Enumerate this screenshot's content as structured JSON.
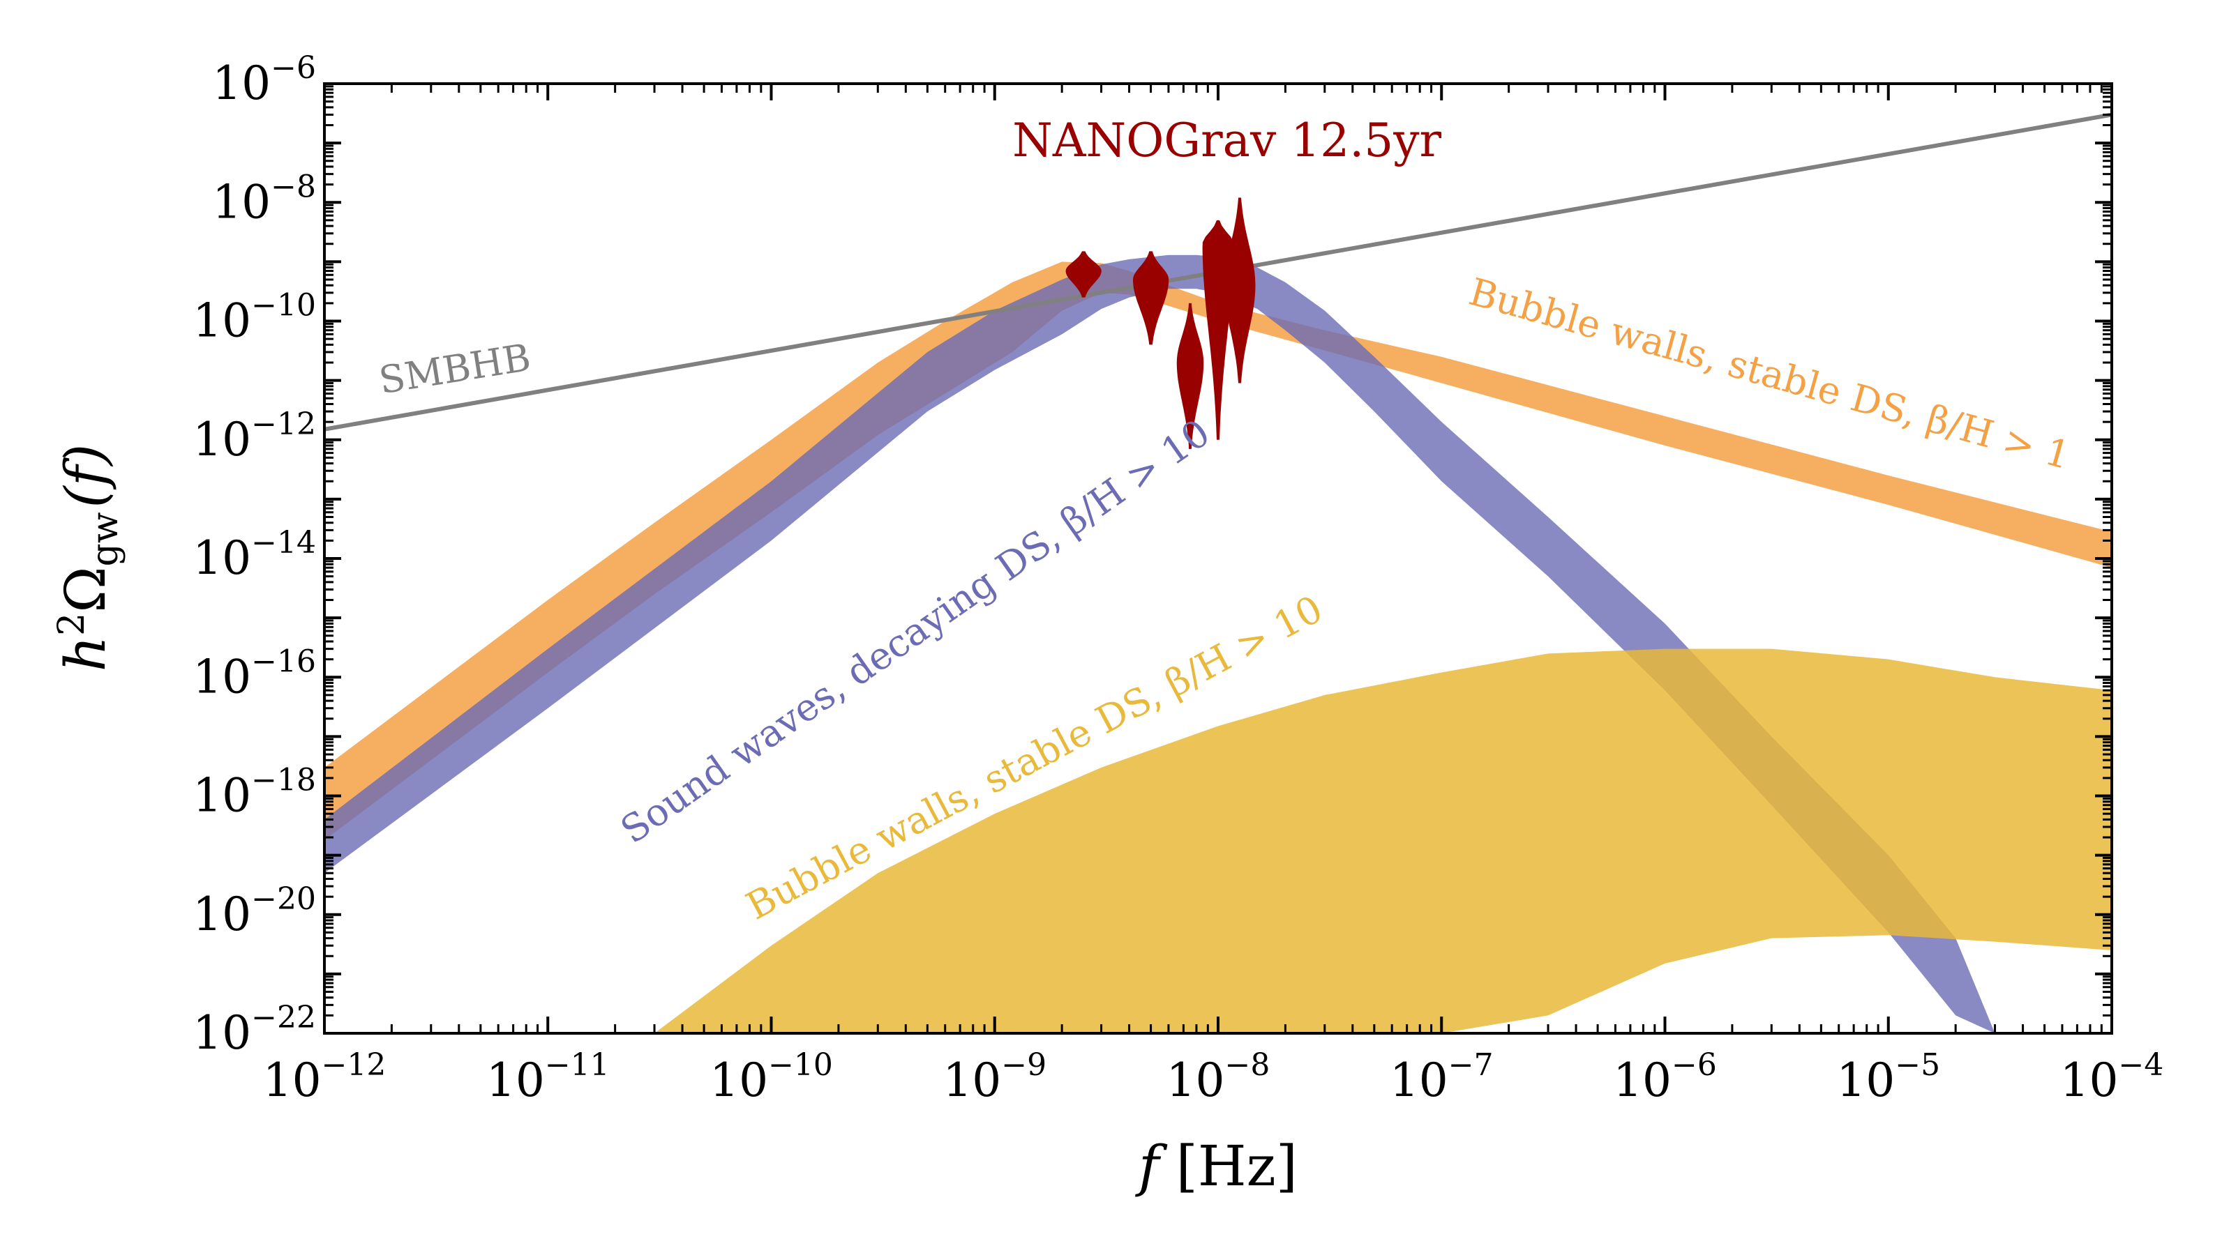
{
  "chart_data": {
    "type": "area",
    "x_scale": "log",
    "y_scale": "log",
    "xlim": [
      1e-12,
      0.0001
    ],
    "ylim": [
      1e-22,
      1e-06
    ],
    "x_ticks": [
      {
        "base": "10",
        "exp": "−12"
      },
      {
        "base": "10",
        "exp": "−11"
      },
      {
        "base": "10",
        "exp": "−10"
      },
      {
        "base": "10",
        "exp": "−9"
      },
      {
        "base": "10",
        "exp": "−8"
      },
      {
        "base": "10",
        "exp": "−7"
      },
      {
        "base": "10",
        "exp": "−6"
      },
      {
        "base": "10",
        "exp": "−5"
      },
      {
        "base": "10",
        "exp": "−4"
      }
    ],
    "y_ticks": [
      {
        "base": "10",
        "exp": "−6"
      },
      {
        "base": "10",
        "exp": "−8"
      },
      {
        "base": "10",
        "exp": "−10"
      },
      {
        "base": "10",
        "exp": "−12"
      },
      {
        "base": "10",
        "exp": "−14"
      },
      {
        "base": "10",
        "exp": "−16"
      },
      {
        "base": "10",
        "exp": "−18"
      },
      {
        "base": "10",
        "exp": "−20"
      },
      {
        "base": "10",
        "exp": "−22"
      }
    ],
    "xlabel": {
      "var": "f",
      "unit": "[Hz]"
    },
    "ylabel": {
      "prefix": "h",
      "sup": "2",
      "symbol": "Ω",
      "sub": "gw",
      "arg": "(f)"
    },
    "smbhb_line": {
      "label": "SMBHB",
      "color": "#808080",
      "x": [
        1e-12,
        0.0001
      ],
      "y": [
        1.5e-12,
        3e-07
      ]
    },
    "series": [
      {
        "name": "Bubble walls, stable DS, β/H > 1",
        "color": "#f4a145",
        "opacity": 0.85,
        "x": [
          1e-12,
          1e-11,
          3e-11,
          1e-10,
          3e-10,
          6e-10,
          1.2e-09,
          2e-09,
          3e-09,
          4e-09,
          6e-09,
          1e-08,
          3e-08,
          1e-07,
          1e-06,
          1e-05,
          0.0001
        ],
        "y_upper": [
          3e-18,
          2e-15,
          4e-14,
          1e-12,
          2e-11,
          1e-10,
          4.5e-10,
          1e-09,
          9.5e-10,
          7e-10,
          4e-10,
          2e-10,
          7e-11,
          2.5e-11,
          2.5e-12,
          2.5e-13,
          2.8e-14
        ],
        "y_lower": [
          1.8e-19,
          1.2e-16,
          2.5e-15,
          6e-14,
          1.2e-12,
          6e-12,
          3e-11,
          1.5e-10,
          3e-10,
          2.8e-10,
          1.8e-10,
          1e-10,
          3.2e-11,
          9e-12,
          8e-13,
          8e-14,
          7e-15
        ]
      },
      {
        "name": "Sound waves, decaying DS, β/H > 10",
        "color": "#6c6cb4",
        "opacity": 0.8,
        "x": [
          1e-12,
          1e-11,
          1e-10,
          5e-10,
          1e-09,
          2e-09,
          3e-09,
          4e-09,
          6e-09,
          8e-09,
          1e-08,
          1.5e-08,
          2e-08,
          3e-08,
          5e-08,
          1e-07,
          3e-07,
          1e-06,
          3e-06,
          1e-05,
          2e-05,
          3e-05
        ],
        "y_upper": [
          4e-19,
          3e-16,
          2e-13,
          3e-11,
          1.5e-10,
          5e-10,
          9e-10,
          1.1e-09,
          1.3e-09,
          1.3e-09,
          1.2e-09,
          8e-10,
          4.5e-10,
          1.5e-10,
          2.5e-11,
          2e-12,
          5e-14,
          8e-16,
          1e-17,
          1e-19,
          4e-21,
          1e-22
        ],
        "y_lower": [
          5e-20,
          3e-17,
          2e-14,
          3e-12,
          1.5e-11,
          6e-11,
          1.6e-10,
          2.5e-10,
          3.5e-10,
          3.5e-10,
          3e-10,
          1.6e-10,
          7e-11,
          2e-11,
          3e-12,
          2e-13,
          5e-15,
          6e-17,
          7e-19,
          5e-21,
          2e-22,
          1e-22
        ]
      },
      {
        "name": "Bubble walls, stable DS, β/H > 10",
        "color": "#e8b93a",
        "opacity": 0.85,
        "x": [
          1e-12,
          3e-12,
          1e-11,
          3e-11,
          1e-10,
          3e-10,
          1e-09,
          3e-09,
          1e-08,
          3e-08,
          1e-07,
          3e-07,
          1e-06,
          3e-06,
          1e-05,
          3e-05,
          0.0001
        ],
        "y_upper": [
          null,
          null,
          null,
          1e-22,
          3e-21,
          5e-20,
          5e-19,
          3e-18,
          1.5e-17,
          5e-17,
          1.2e-16,
          2.5e-16,
          3e-16,
          3e-16,
          2e-16,
          1e-16,
          6e-17
        ],
        "y_lower": [
          null,
          null,
          null,
          1e-22,
          1e-22,
          1e-22,
          1e-22,
          1e-22,
          1e-22,
          1e-22,
          1e-22,
          2e-22,
          1.5e-21,
          4e-21,
          4.5e-21,
          3.5e-21,
          2.5e-21
        ]
      }
    ],
    "nanograv": {
      "label": "NANOGrav 12.5yr",
      "color": "#990000",
      "violins": [
        {
          "f": 2.5e-09,
          "ymin": 2.5e-10,
          "ymax": 1.5e-09,
          "ymode": 7e-10,
          "wmax": 0.08
        },
        {
          "f": 5e-09,
          "ymin": 4e-11,
          "ymax": 1.5e-09,
          "ymode": 5e-10,
          "wmax": 0.08
        },
        {
          "f": 7.5e-09,
          "ymin": 7e-13,
          "ymax": 2e-10,
          "ymode": 2e-11,
          "wmax": 0.06
        },
        {
          "f": 1e-08,
          "ymin": 1e-12,
          "ymax": 5e-09,
          "ymode": 2e-09,
          "wmax": 0.07
        },
        {
          "f": 1.25e-08,
          "ymin": 9e-12,
          "ymax": 1.2e-08,
          "ymode": 4e-10,
          "wmax": 0.07
        }
      ]
    },
    "annotations": [
      {
        "text": "SMBHB",
        "x": 1.8e-12,
        "y": 6e-12,
        "angle": -9,
        "color": "#808080"
      },
      {
        "text": "Bubble walls, stable DS, β/H > 1",
        "x": 1.3e-07,
        "y": 2e-10,
        "angle": 15.5,
        "color": "#f4a145"
      },
      {
        "text": "Sound waves, decaying DS, β/H > 10",
        "x": 2.4e-11,
        "y": 1.5e-19,
        "angle": -35,
        "color": "#6c6cb4"
      },
      {
        "text": "Bubble walls, stable DS, β/H > 10",
        "x": 8.5e-11,
        "y": 8e-21,
        "angle": -28,
        "color": "#e8b93a"
      },
      {
        "text": "NANOGrav 12.5yr",
        "x": 1.2e-09,
        "y": 6e-08,
        "angle": 0,
        "color": "#990000"
      }
    ],
    "grid": false
  }
}
